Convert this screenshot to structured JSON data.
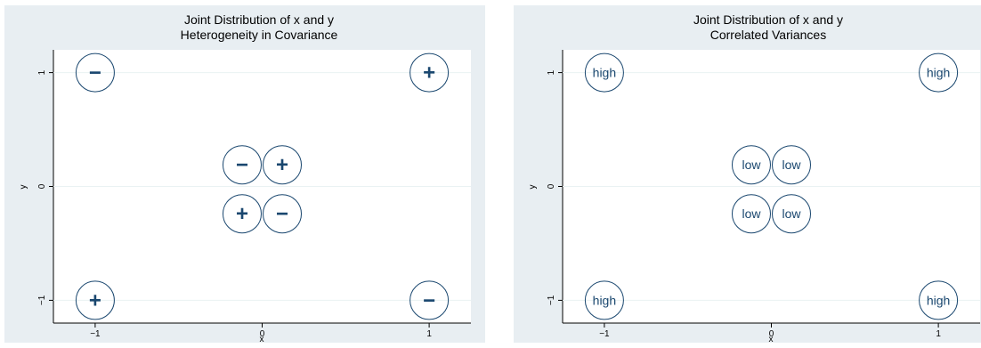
{
  "chart_data": [
    {
      "type": "scatter",
      "title": "Joint Distribution of x and y",
      "subtitle": "Heterogeneity in Covariance",
      "xlabel": "x",
      "ylabel": "y",
      "xlim": [
        -1.25,
        1.25
      ],
      "ylim": [
        -1.2,
        1.2
      ],
      "xticks": [
        "−1",
        "0",
        "1"
      ],
      "yticks": [
        "1",
        "0",
        "−1"
      ],
      "grid": "horizontal",
      "points": [
        {
          "x": -1,
          "y": 1,
          "label": "−"
        },
        {
          "x": 1,
          "y": 1,
          "label": "+"
        },
        {
          "x": -0.12,
          "y": 0.19,
          "label": "−"
        },
        {
          "x": 0.12,
          "y": 0.19,
          "label": "+"
        },
        {
          "x": -0.12,
          "y": -0.24,
          "label": "+"
        },
        {
          "x": 0.12,
          "y": -0.24,
          "label": "−"
        },
        {
          "x": -1,
          "y": -1,
          "label": "+"
        },
        {
          "x": 1,
          "y": -1,
          "label": "−"
        }
      ]
    },
    {
      "type": "scatter",
      "title": "Joint Distribution of x and y",
      "subtitle": "Correlated Variances",
      "xlabel": "x",
      "ylabel": "y",
      "xlim": [
        -1.25,
        1.25
      ],
      "ylim": [
        -1.2,
        1.2
      ],
      "xticks": [
        "−1",
        "0",
        "1"
      ],
      "yticks": [
        "1",
        "0",
        "−1"
      ],
      "grid": "horizontal",
      "points": [
        {
          "x": -1,
          "y": 1,
          "label": "high"
        },
        {
          "x": 1,
          "y": 1,
          "label": "high"
        },
        {
          "x": -0.12,
          "y": 0.19,
          "label": "low"
        },
        {
          "x": 0.12,
          "y": 0.19,
          "label": "low"
        },
        {
          "x": -0.12,
          "y": -0.24,
          "label": "low"
        },
        {
          "x": 0.12,
          "y": -0.24,
          "label": "low"
        },
        {
          "x": -1,
          "y": -1,
          "label": "high"
        },
        {
          "x": 1,
          "y": -1,
          "label": "high"
        }
      ]
    }
  ],
  "colors": {
    "panel_background": "#e8eef2",
    "plot_background": "#ffffff",
    "marker": "#1a476f",
    "grid": "#eaf2f3"
  }
}
